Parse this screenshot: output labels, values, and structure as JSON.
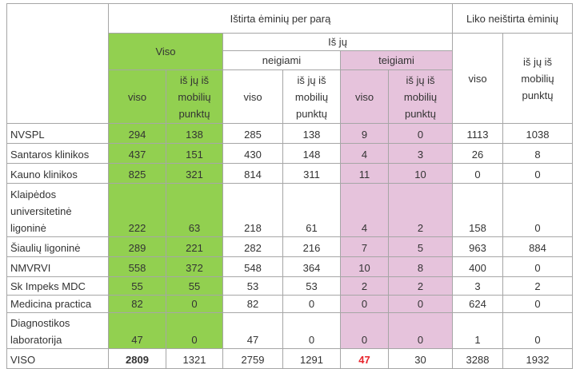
{
  "table": {
    "header": {
      "tested": "Ištirta ėminių per parą",
      "remaining": "Liko neištirta ėminių",
      "total": "Viso",
      "of_which": "Iš jų",
      "negative": "neigiami",
      "positive": "teigiami",
      "subheaders": [
        "viso",
        "iš jų iš\nmobilių\npunktų",
        "viso",
        "iš jų iš\nmobilių\npunktų",
        "viso",
        "iš jų iš\nmobilių\npunktų",
        "viso",
        "iš jų iš\nmobilių\npunktų"
      ]
    },
    "rows": [
      {
        "label": "NVSPL",
        "values": [
          294,
          138,
          285,
          138,
          9,
          0,
          1113,
          1038
        ]
      },
      {
        "label": "Santaros klinikos",
        "values": [
          437,
          151,
          430,
          148,
          4,
          3,
          26,
          8
        ]
      },
      {
        "label": "Kauno klinikos",
        "values": [
          825,
          321,
          814,
          311,
          11,
          10,
          0,
          0
        ]
      },
      {
        "label": "Klaipėdos\nuniversitetinė\nligoninė",
        "values": [
          222,
          63,
          218,
          61,
          4,
          2,
          158,
          0
        ]
      },
      {
        "label": "Šiaulių ligoninė",
        "values": [
          289,
          221,
          282,
          216,
          7,
          5,
          963,
          884
        ]
      },
      {
        "label": "NMVRVI",
        "values": [
          558,
          372,
          548,
          364,
          10,
          8,
          400,
          0
        ]
      },
      {
        "label": "Sk Impeks MDC",
        "values": [
          55,
          55,
          53,
          53,
          2,
          2,
          3,
          2
        ]
      },
      {
        "label": "Medicina practica",
        "values": [
          82,
          0,
          82,
          0,
          0,
          0,
          624,
          0
        ]
      },
      {
        "label": "Diagnostikos\nlaboratorija",
        "values": [
          47,
          0,
          47,
          0,
          0,
          0,
          1,
          0
        ]
      }
    ],
    "total": {
      "label": "VISO",
      "values": [
        2809,
        1321,
        2759,
        1291,
        47,
        30,
        3288,
        1932
      ]
    }
  }
}
